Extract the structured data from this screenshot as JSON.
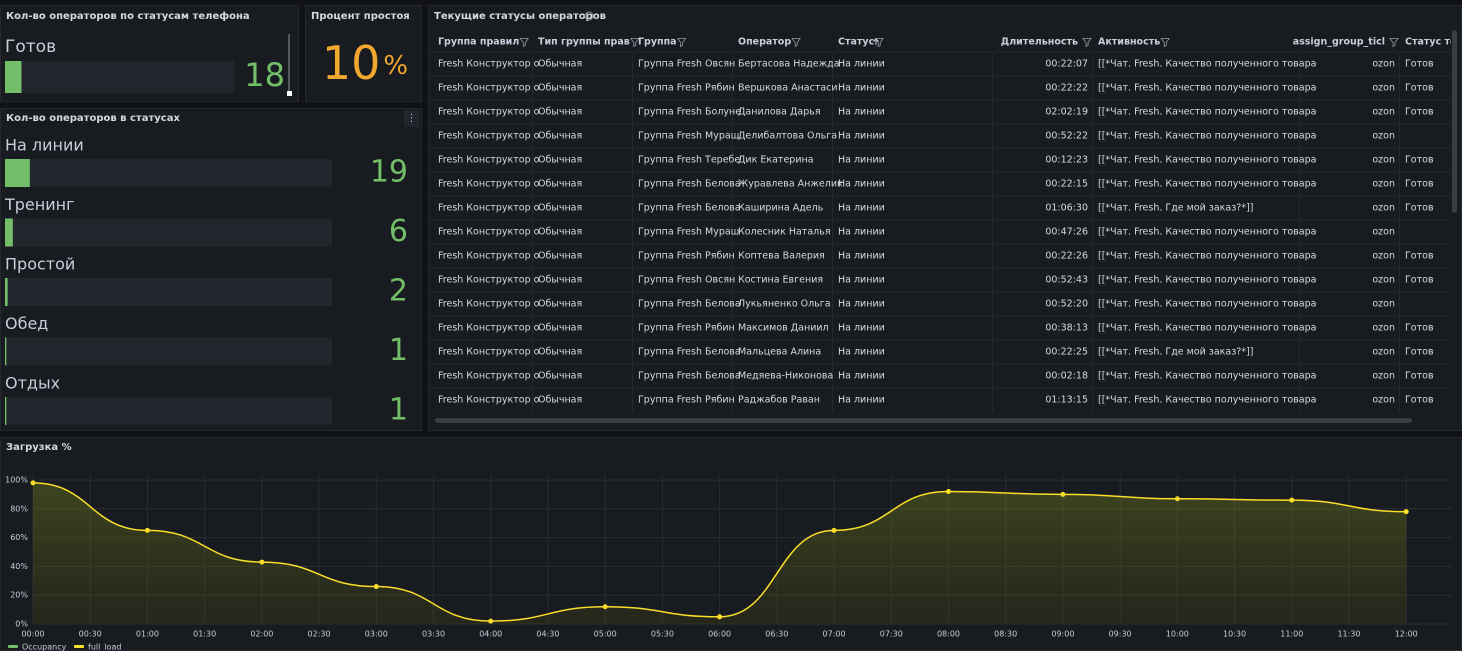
{
  "chart_data": [
    {
      "type": "bargauge",
      "title": "Кол-во операторов по статусам телефона",
      "categories": [
        "Готов"
      ],
      "values": [
        18
      ],
      "xlim": [
        0,
        250
      ],
      "color": "#73bf69"
    },
    {
      "type": "stat",
      "title": "Процент простоя",
      "values": [
        10
      ],
      "unit": "%",
      "color": "#f2a82e"
    },
    {
      "type": "bargauge",
      "title": "Кол-во операторов в статусах",
      "categories": [
        "На линии",
        "Тренинг",
        "Простой",
        "Обед",
        "Отдых"
      ],
      "values": [
        19,
        6,
        2,
        1,
        1
      ],
      "xlim": [
        0,
        250
      ],
      "color": "#73bf69"
    },
    {
      "type": "line",
      "title": "Загрузка %",
      "x": [
        0,
        1,
        2,
        3,
        4,
        5,
        6,
        7,
        8,
        9,
        10,
        11,
        12
      ],
      "series": [
        {
          "name": "Occupancy",
          "color": "#73bf69",
          "values": [
            null,
            null,
            null,
            null,
            null,
            null,
            null,
            null,
            null,
            null,
            null,
            null,
            null
          ]
        },
        {
          "name": "full_load",
          "color": "#fade2a",
          "values": [
            98,
            65,
            43,
            26,
            2,
            12,
            5,
            65,
            92,
            90,
            87,
            86,
            78
          ]
        }
      ],
      "xlim": [
        0,
        12.4
      ],
      "xticks": [
        {
          "value": 0,
          "label": "00:00"
        },
        {
          "value": 0.5,
          "label": "00:30"
        },
        {
          "value": 1,
          "label": "01:00"
        },
        {
          "value": 1.5,
          "label": "01:30"
        },
        {
          "value": 2,
          "label": "02:00"
        },
        {
          "value": 2.5,
          "label": "02:30"
        },
        {
          "value": 3,
          "label": "03:00"
        },
        {
          "value": 3.5,
          "label": "03:30"
        },
        {
          "value": 4,
          "label": "04:00"
        },
        {
          "value": 4.5,
          "label": "04:30"
        },
        {
          "value": 5,
          "label": "05:00"
        },
        {
          "value": 5.5,
          "label": "05:30"
        },
        {
          "value": 6,
          "label": "06:00"
        },
        {
          "value": 6.5,
          "label": "06:30"
        },
        {
          "value": 7,
          "label": "07:00"
        },
        {
          "value": 7.5,
          "label": "07:30"
        },
        {
          "value": 8,
          "label": "08:00"
        },
        {
          "value": 8.5,
          "label": "08:30"
        },
        {
          "value": 9,
          "label": "09:00"
        },
        {
          "value": 9.5,
          "label": "09:30"
        },
        {
          "value": 10,
          "label": "10:00"
        },
        {
          "value": 10.5,
          "label": "10:30"
        },
        {
          "value": 11,
          "label": "11:00"
        },
        {
          "value": 11.5,
          "label": "11:30"
        },
        {
          "value": 12,
          "label": "12:00"
        }
      ],
      "ylim": [
        0,
        100
      ],
      "yticks": [
        {
          "value": 0,
          "label": "0%"
        },
        {
          "value": 20,
          "label": "20%"
        },
        {
          "value": 40,
          "label": "40%"
        },
        {
          "value": 60,
          "label": "60%"
        },
        {
          "value": 80,
          "label": "80%"
        },
        {
          "value": 100,
          "label": "100%"
        }
      ],
      "grid": true,
      "legend": "bottom-left"
    }
  ],
  "table": {
    "title": "Текущие статусы операторов",
    "columns": [
      "Группа правил",
      "Тип группы прав",
      "Группа",
      "Оператор",
      "Статус",
      "Длительность",
      "Активность",
      "assign_group_ticl",
      "Статус теле"
    ],
    "rows": [
      [
        "Fresh Конструктор о",
        "Обычная",
        "Группа Fresh Овсян",
        "Бертасова Надежда",
        "На линии",
        "00:22:07",
        "[[*Чат. Fresh. Качество полученного товара",
        "ozon",
        "Готов"
      ],
      [
        "Fresh Конструктор о",
        "Обычная",
        "Группа Fresh Рябин",
        "Вершкова Анастаси",
        "На линии",
        "00:22:22",
        "[[*Чат. Fresh. Качество полученного товара",
        "ozon",
        "Готов"
      ],
      [
        "Fresh Конструктор о",
        "Обычная",
        "Группа Fresh Болуне",
        "Данилова Дарья",
        "На линии",
        "02:02:19",
        "[[*Чат. Fresh. Качество полученного товара",
        "ozon",
        "Готов"
      ],
      [
        "Fresh Конструктор о",
        "Обычная",
        "Группа Fresh Мураш",
        "Делибалтова Ольга",
        "На линии",
        "00:52:22",
        "[[*Чат. Fresh. Качество полученного товара",
        "ozon",
        null
      ],
      [
        "Fresh Конструктор о",
        "Обычная",
        "Группа Fresh Теребе",
        "Дик Екатерина",
        "На линии",
        "00:12:23",
        "[[*Чат. Fresh. Качество полученного товара",
        "ozon",
        "Готов"
      ],
      [
        "Fresh Конструктор о",
        "Обычная",
        "Группа Fresh Белова",
        "Журавлева Анжелик",
        "На линии",
        "00:22:15",
        "[[*Чат. Fresh. Качество полученного товара",
        "ozon",
        "Готов"
      ],
      [
        "Fresh Конструктор о",
        "Обычная",
        "Группа Fresh Белова",
        "Каширина Адель",
        "На линии",
        "01:06:30",
        "[[*Чат. Fresh. Где мой заказ?*]]",
        "ozon",
        "Готов"
      ],
      [
        "Fresh Конструктор о",
        "Обычная",
        "Группа Fresh Мураш",
        "Колесник Наталья",
        "На линии",
        "00:47:26",
        "[[*Чат. Fresh. Качество полученного товара",
        "ozon",
        null
      ],
      [
        "Fresh Конструктор о",
        "Обычная",
        "Группа Fresh Рябин",
        "Коптева Валерия",
        "На линии",
        "00:22:26",
        "[[*Чат. Fresh. Качество полученного товара",
        "ozon",
        "Готов"
      ],
      [
        "Fresh Конструктор о",
        "Обычная",
        "Группа Fresh Овсян",
        "Костина Евгения",
        "На линии",
        "00:52:43",
        "[[*Чат. Fresh. Качество полученного товара",
        "ozon",
        "Готов"
      ],
      [
        "Fresh Конструктор о",
        "Обычная",
        "Группа Fresh Белова",
        "Лукьяненко Ольга",
        "На линии",
        "00:52:20",
        "[[*Чат. Fresh. Качество полученного товара",
        "ozon",
        null
      ],
      [
        "Fresh Конструктор о",
        "Обычная",
        "Группа Fresh Рябин",
        "Максимов Даниил",
        "На линии",
        "00:38:13",
        "[[*Чат. Fresh. Качество полученного товара",
        "ozon",
        "Готов"
      ],
      [
        "Fresh Конструктор о",
        "Обычная",
        "Группа Fresh Белова",
        "Мальцева Алина",
        "На линии",
        "00:22:25",
        "[[*Чат. Fresh. Где мой заказ?*]]",
        "ozon",
        "Готов"
      ],
      [
        "Fresh Конструктор о",
        "Обычная",
        "Группа Fresh Белова",
        "Медяева-Никонова",
        "На линии",
        "00:02:18",
        "[[*Чат. Fresh. Качество полученного товара",
        "ozon",
        "Готов"
      ],
      [
        "Fresh Конструктор о",
        "Обычная",
        "Группа Fresh Рябин",
        "Раджабов Раван",
        "На линии",
        "01:13:15",
        "[[*Чат. Fresh. Качество полученного товара",
        "ozon",
        "Готов"
      ]
    ]
  }
}
